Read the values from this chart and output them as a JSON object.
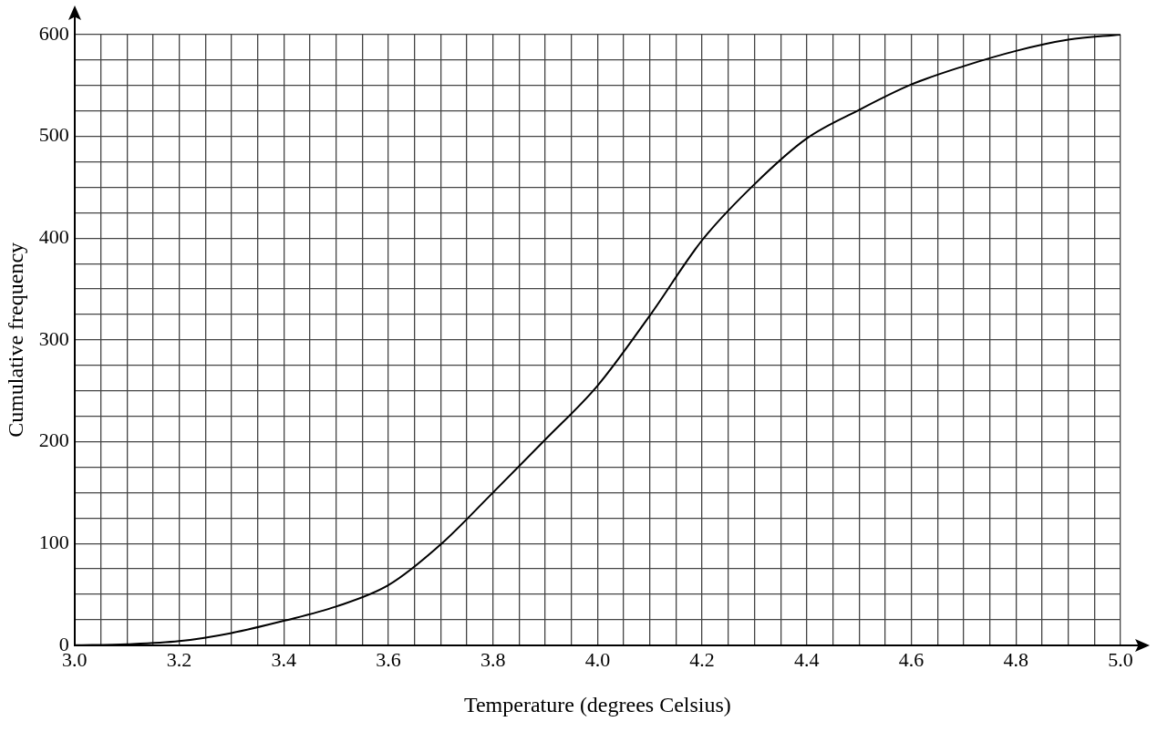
{
  "chart_data": {
    "type": "line",
    "xlabel": "Temperature (degrees Celsius)",
    "ylabel": "Cumulative frequency",
    "x": [
      3.0,
      3.1,
      3.2,
      3.3,
      3.4,
      3.5,
      3.6,
      3.7,
      3.8,
      3.9,
      4.0,
      4.1,
      4.2,
      4.3,
      4.4,
      4.5,
      4.6,
      4.7,
      4.8,
      4.9,
      5.0
    ],
    "series": [
      {
        "color": "#000000",
        "values": [
          0,
          1,
          4,
          12,
          24,
          38,
          59,
          99,
          150,
          202,
          255,
          324,
          398,
          453,
          498,
          526,
          551,
          569,
          584,
          595,
          600
        ]
      }
    ],
    "xlim": [
      3.0,
      5.0
    ],
    "ylim": [
      0,
      600
    ],
    "xticks": [
      {
        "value": 3.0,
        "label": "3.0"
      },
      {
        "value": 3.05,
        "label": null
      },
      {
        "value": 3.1,
        "label": null
      },
      {
        "value": 3.15,
        "label": null
      },
      {
        "value": 3.2,
        "label": "3.2"
      },
      {
        "value": 3.25,
        "label": null
      },
      {
        "value": 3.3,
        "label": null
      },
      {
        "value": 3.35,
        "label": null
      },
      {
        "value": 3.4,
        "label": "3.4"
      },
      {
        "value": 3.45,
        "label": null
      },
      {
        "value": 3.5,
        "label": null
      },
      {
        "value": 3.55,
        "label": null
      },
      {
        "value": 3.6,
        "label": "3.6"
      },
      {
        "value": 3.65,
        "label": null
      },
      {
        "value": 3.7,
        "label": null
      },
      {
        "value": 3.75,
        "label": null
      },
      {
        "value": 3.8,
        "label": "3.8"
      },
      {
        "value": 3.85,
        "label": null
      },
      {
        "value": 3.9,
        "label": null
      },
      {
        "value": 3.95,
        "label": null
      },
      {
        "value": 4.0,
        "label": "4.0"
      },
      {
        "value": 4.05,
        "label": null
      },
      {
        "value": 4.1,
        "label": null
      },
      {
        "value": 4.15,
        "label": null
      },
      {
        "value": 4.2,
        "label": "4.2"
      },
      {
        "value": 4.25,
        "label": null
      },
      {
        "value": 4.3,
        "label": null
      },
      {
        "value": 4.35,
        "label": null
      },
      {
        "value": 4.4,
        "label": "4.4"
      },
      {
        "value": 4.45,
        "label": null
      },
      {
        "value": 4.5,
        "label": null
      },
      {
        "value": 4.55,
        "label": null
      },
      {
        "value": 4.6,
        "label": "4.6"
      },
      {
        "value": 4.65,
        "label": null
      },
      {
        "value": 4.7,
        "label": null
      },
      {
        "value": 4.75,
        "label": null
      },
      {
        "value": 4.8,
        "label": "4.8"
      },
      {
        "value": 4.85,
        "label": null
      },
      {
        "value": 4.9,
        "label": null
      },
      {
        "value": 4.95,
        "label": null
      },
      {
        "value": 5.0,
        "label": "5.0"
      }
    ],
    "yticks": [
      0,
      {
        "value": 25,
        "label": null
      },
      {
        "value": 50,
        "label": null
      },
      {
        "value": 75,
        "label": null
      },
      100,
      {
        "value": 125,
        "label": null
      },
      {
        "value": 150,
        "label": null
      },
      {
        "value": 175,
        "label": null
      },
      200,
      {
        "value": 225,
        "label": null
      },
      {
        "value": 250,
        "label": null
      },
      {
        "value": 275,
        "label": null
      },
      300,
      {
        "value": 325,
        "label": null
      },
      {
        "value": 350,
        "label": null
      },
      {
        "value": 375,
        "label": null
      },
      400,
      {
        "value": 425,
        "label": null
      },
      {
        "value": 450,
        "label": null
      },
      {
        "value": 475,
        "label": null
      },
      500,
      {
        "value": 525,
        "label": null
      },
      {
        "value": 550,
        "label": null
      },
      {
        "value": 575,
        "label": null
      },
      600
    ],
    "grid": true
  }
}
